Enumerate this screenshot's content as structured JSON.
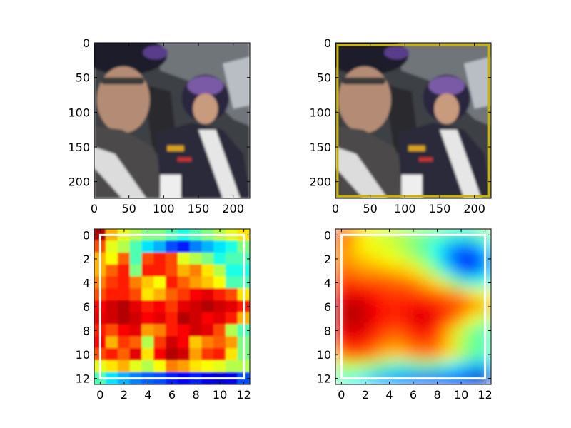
{
  "figure": {
    "layout": "2x2 grid of image subplots"
  },
  "chart_data": [
    {
      "type": "image",
      "subplot": "top-left",
      "image_description": "photo of two people in a car; the driver (left) wears glasses and a dark helmet, the passenger (right) wears a purple-and-black helmet and a white racing suit with sponsor logos",
      "image_size": [
        224,
        224
      ],
      "xlim": [
        0,
        224
      ],
      "ylim": [
        224,
        0
      ],
      "x_ticks": [
        0,
        50,
        100,
        150,
        200
      ],
      "y_ticks": [
        0,
        50,
        100,
        150,
        200
      ],
      "x_tick_labels": [
        "0",
        "50",
        "100",
        "150",
        "200"
      ],
      "y_tick_labels": [
        "0",
        "50",
        "100",
        "150",
        "200"
      ],
      "grid": false
    },
    {
      "type": "image",
      "subplot": "top-right",
      "image_description": "same photo with a yellow bounding box drawn around nearly the entire image",
      "image_size": [
        224,
        224
      ],
      "xlim": [
        0,
        224
      ],
      "ylim": [
        224,
        0
      ],
      "x_ticks": [
        0,
        50,
        100,
        150,
        200
      ],
      "y_ticks": [
        0,
        50,
        100,
        150,
        200
      ],
      "x_tick_labels": [
        "0",
        "50",
        "100",
        "150",
        "200"
      ],
      "y_tick_labels": [
        "0",
        "50",
        "100",
        "150",
        "200"
      ],
      "bounding_box": {
        "color": "#c8b400",
        "x0": 3,
        "y0": 3,
        "x1": 221,
        "y1": 221
      },
      "grid": false
    },
    {
      "type": "heatmap",
      "subplot": "bottom-left",
      "colormap": "jet",
      "interpolation": "nearest",
      "grid_size": [
        13,
        13
      ],
      "xlim": [
        -0.5,
        12.5
      ],
      "ylim": [
        12.5,
        -0.5
      ],
      "x_ticks": [
        0,
        2,
        4,
        6,
        8,
        10,
        12
      ],
      "y_ticks": [
        0,
        2,
        4,
        6,
        8,
        10,
        12
      ],
      "x_tick_labels": [
        "0",
        "2",
        "4",
        "6",
        "8",
        "10",
        "12"
      ],
      "y_tick_labels": [
        "0",
        "2",
        "4",
        "6",
        "8",
        "10",
        "12"
      ],
      "bounding_box": {
        "color": "#ffffff",
        "x0": 0,
        "y0": 0,
        "x1": 12,
        "y1": 12
      },
      "values": [
        [
          0.95,
          0.7,
          0.6,
          0.55,
          0.5,
          0.5,
          0.45,
          0.4,
          0.45,
          0.5,
          0.55,
          0.6,
          0.65
        ],
        [
          0.8,
          0.6,
          0.55,
          0.45,
          0.35,
          0.3,
          0.2,
          0.15,
          0.25,
          0.3,
          0.35,
          0.4,
          0.5
        ],
        [
          0.7,
          0.62,
          0.78,
          0.45,
          0.8,
          0.85,
          0.8,
          0.6,
          0.55,
          0.5,
          0.4,
          0.45,
          0.45
        ],
        [
          0.7,
          0.78,
          0.85,
          0.5,
          0.85,
          0.85,
          0.8,
          0.7,
          0.75,
          0.65,
          0.55,
          0.4,
          0.4
        ],
        [
          0.75,
          0.82,
          0.85,
          0.75,
          0.68,
          0.62,
          0.85,
          0.78,
          0.72,
          0.68,
          0.62,
          0.45,
          0.45
        ],
        [
          0.8,
          0.85,
          0.85,
          0.8,
          0.65,
          0.7,
          0.78,
          0.82,
          0.88,
          0.9,
          0.85,
          0.8,
          0.65
        ],
        [
          0.88,
          0.92,
          0.95,
          0.9,
          0.85,
          0.88,
          0.82,
          0.9,
          0.92,
          0.95,
          0.92,
          0.9,
          0.85
        ],
        [
          0.9,
          0.92,
          0.95,
          0.92,
          0.88,
          0.9,
          0.85,
          0.95,
          0.92,
          0.88,
          0.9,
          0.85,
          0.7
        ],
        [
          0.85,
          0.8,
          0.88,
          0.9,
          0.72,
          0.75,
          0.85,
          0.88,
          0.92,
          0.9,
          0.8,
          0.55,
          0.45
        ],
        [
          0.88,
          0.7,
          0.82,
          0.78,
          0.55,
          0.82,
          0.92,
          0.88,
          0.68,
          0.75,
          0.78,
          0.72,
          0.5
        ],
        [
          0.8,
          0.85,
          0.78,
          0.9,
          0.65,
          0.88,
          0.95,
          0.92,
          0.72,
          0.82,
          0.85,
          0.65,
          0.5
        ],
        [
          0.6,
          0.65,
          0.7,
          0.6,
          0.55,
          0.62,
          0.75,
          0.72,
          0.65,
          0.62,
          0.6,
          0.55,
          0.55
        ],
        [
          0.45,
          0.35,
          0.3,
          0.25,
          0.22,
          0.2,
          0.15,
          0.12,
          0.15,
          0.1,
          0.08,
          0.1,
          0.2
        ]
      ]
    },
    {
      "type": "heatmap",
      "subplot": "bottom-right",
      "colormap": "jet",
      "interpolation": "smooth",
      "grid_size": [
        13,
        13
      ],
      "xlim": [
        -0.5,
        12.5
      ],
      "ylim": [
        12.5,
        -0.5
      ],
      "x_ticks": [
        0,
        2,
        4,
        6,
        8,
        10,
        12
      ],
      "y_ticks": [
        0,
        2,
        4,
        6,
        8,
        10,
        12
      ],
      "x_tick_labels": [
        "0",
        "2",
        "4",
        "6",
        "8",
        "10",
        "12"
      ],
      "y_tick_labels": [
        "0",
        "2",
        "4",
        "6",
        "8",
        "10",
        "12"
      ],
      "bounding_box": {
        "color": "#ffffff",
        "x0": 0,
        "y0": 0,
        "x1": 12,
        "y1": 12
      },
      "values": [
        [
          0.85,
          0.72,
          0.65,
          0.6,
          0.58,
          0.55,
          0.52,
          0.5,
          0.48,
          0.45,
          0.42,
          0.45,
          0.5
        ],
        [
          0.78,
          0.68,
          0.62,
          0.6,
          0.58,
          0.55,
          0.5,
          0.45,
          0.38,
          0.3,
          0.25,
          0.25,
          0.35
        ],
        [
          0.75,
          0.7,
          0.68,
          0.65,
          0.62,
          0.6,
          0.55,
          0.5,
          0.4,
          0.25,
          0.15,
          0.12,
          0.25
        ],
        [
          0.78,
          0.75,
          0.72,
          0.72,
          0.7,
          0.68,
          0.65,
          0.58,
          0.48,
          0.35,
          0.22,
          0.2,
          0.3
        ],
        [
          0.82,
          0.82,
          0.8,
          0.8,
          0.78,
          0.78,
          0.75,
          0.7,
          0.65,
          0.55,
          0.45,
          0.4,
          0.42
        ],
        [
          0.88,
          0.9,
          0.88,
          0.85,
          0.82,
          0.82,
          0.82,
          0.8,
          0.78,
          0.75,
          0.72,
          0.65,
          0.6
        ],
        [
          0.92,
          0.95,
          0.92,
          0.88,
          0.85,
          0.85,
          0.88,
          0.88,
          0.85,
          0.82,
          0.8,
          0.75,
          0.7
        ],
        [
          0.92,
          0.95,
          0.92,
          0.88,
          0.85,
          0.85,
          0.9,
          0.92,
          0.88,
          0.8,
          0.72,
          0.62,
          0.55
        ],
        [
          0.9,
          0.92,
          0.9,
          0.85,
          0.8,
          0.8,
          0.85,
          0.88,
          0.82,
          0.7,
          0.58,
          0.5,
          0.45
        ],
        [
          0.85,
          0.88,
          0.85,
          0.8,
          0.75,
          0.75,
          0.8,
          0.82,
          0.78,
          0.68,
          0.55,
          0.48,
          0.45
        ],
        [
          0.75,
          0.8,
          0.78,
          0.72,
          0.68,
          0.68,
          0.72,
          0.75,
          0.72,
          0.65,
          0.55,
          0.48,
          0.45
        ],
        [
          0.55,
          0.58,
          0.55,
          0.5,
          0.45,
          0.42,
          0.45,
          0.48,
          0.45,
          0.4,
          0.35,
          0.3,
          0.3
        ],
        [
          0.45,
          0.4,
          0.35,
          0.3,
          0.28,
          0.25,
          0.22,
          0.2,
          0.18,
          0.15,
          0.12,
          0.08,
          0.05
        ]
      ]
    }
  ]
}
